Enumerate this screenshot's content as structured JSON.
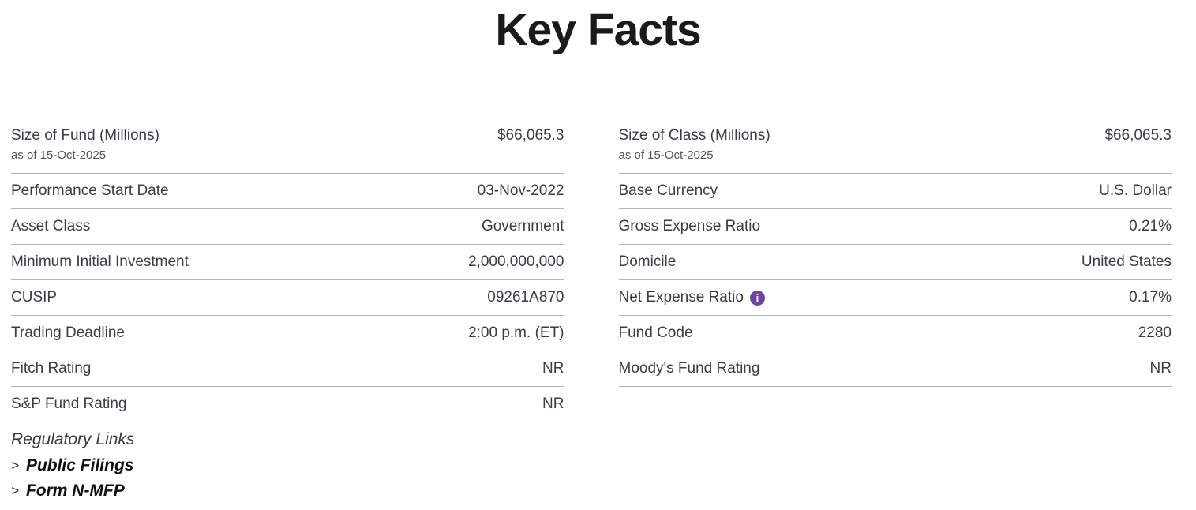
{
  "title": "Key Facts",
  "colors": {
    "accent_purple": "#6f42a5",
    "divider": "#b3b3b3",
    "text": "#3c3d44"
  },
  "icons": {
    "info_glyph": "i"
  },
  "columns": {
    "left": {
      "rows": [
        {
          "label": "Size of Fund (Millions)",
          "value": "$66,065.3",
          "sub": "as of 15-Oct-2025"
        },
        {
          "label": "Performance Start Date",
          "value": "03-Nov-2022"
        },
        {
          "label": "Asset Class",
          "value": "Government"
        },
        {
          "label": "Minimum Initial Investment",
          "value": "2,000,000,000"
        },
        {
          "label": "CUSIP",
          "value": "09261A870"
        },
        {
          "label": "Trading Deadline",
          "value": "2:00 p.m. (ET)"
        },
        {
          "label": "Fitch Rating",
          "value": "NR"
        },
        {
          "label": "S&P Fund Rating",
          "value": "NR"
        }
      ],
      "regulatory": {
        "heading": "Regulatory Links",
        "links": [
          {
            "chevron": ">",
            "label": "Public Filings"
          },
          {
            "chevron": ">",
            "label": "Form N-MFP"
          }
        ]
      }
    },
    "right": {
      "rows": [
        {
          "label": "Size of Class (Millions)",
          "value": "$66,065.3",
          "sub": "as of 15-Oct-2025"
        },
        {
          "label": "Base Currency",
          "value": "U.S. Dollar"
        },
        {
          "label": "Gross Expense Ratio",
          "value": "0.21%"
        },
        {
          "label": "Domicile",
          "value": "United States"
        },
        {
          "label": "Net Expense Ratio",
          "value": "0.17%"
        },
        {
          "label": "Fund Code",
          "value": "2280"
        },
        {
          "label": "Moody's Fund Rating",
          "value": "NR"
        }
      ]
    }
  }
}
